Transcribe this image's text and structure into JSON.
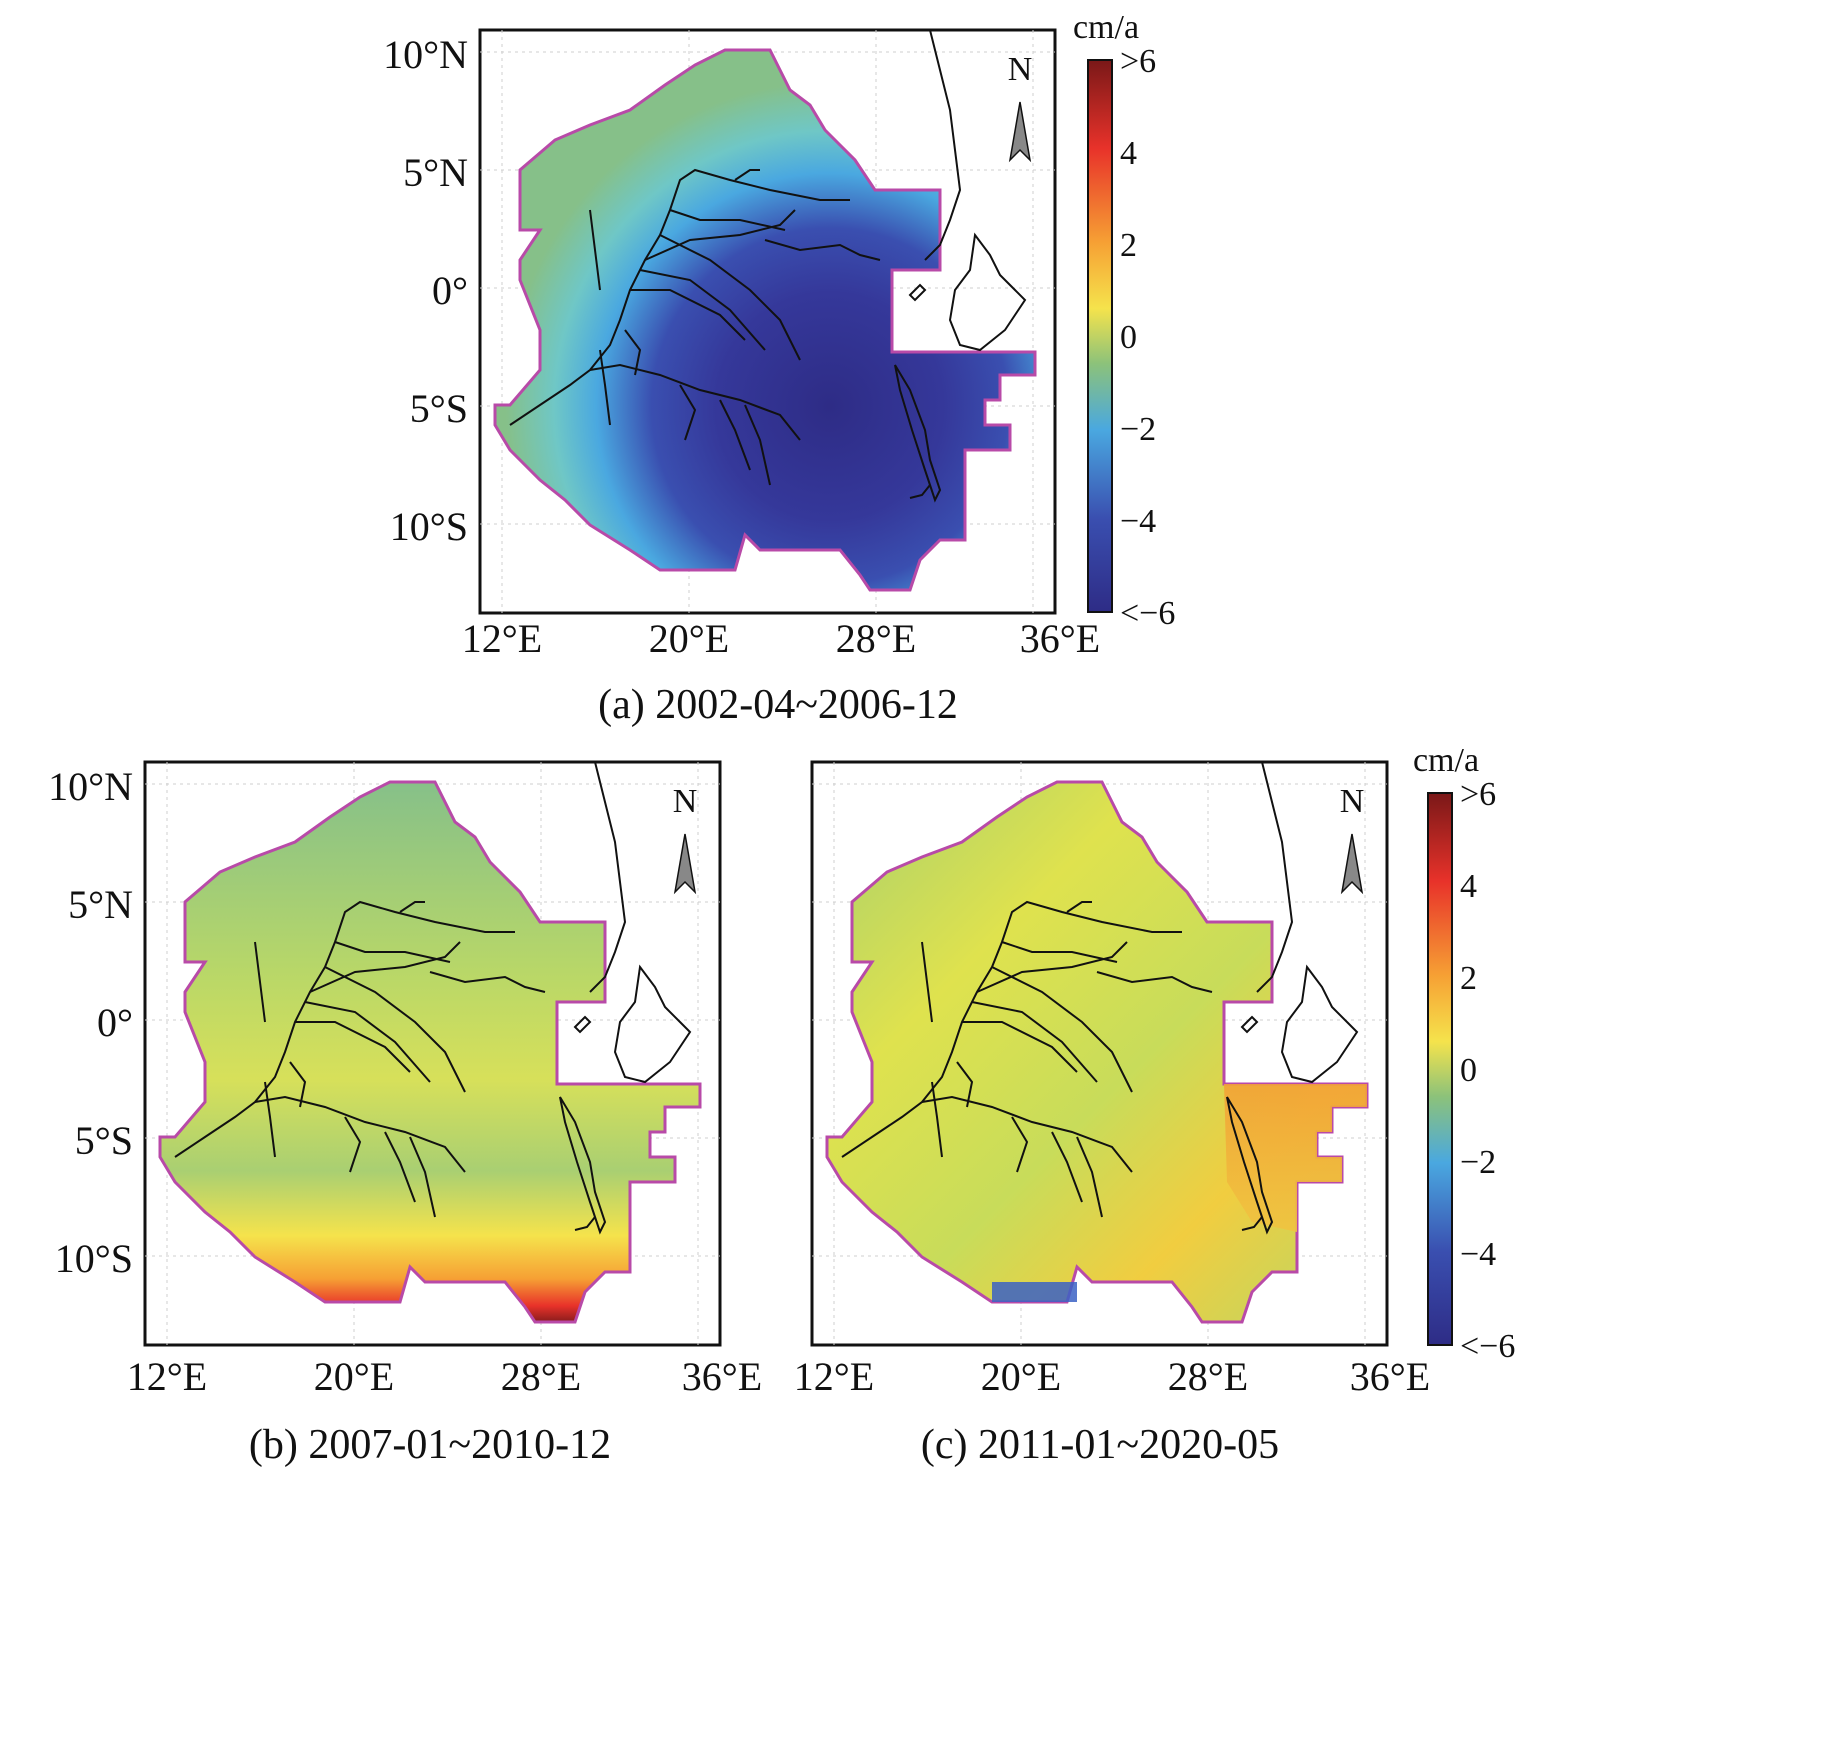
{
  "panels": [
    {
      "id": "a",
      "caption": "(a) 2002-04~2006-12",
      "lat_labels": [
        "10°N",
        "5°N",
        "0°",
        "5°S",
        "10°S"
      ],
      "lon_labels": [
        "12°E",
        "20°E",
        "28°E",
        "36°E"
      ],
      "north_label": "N",
      "pattern": "drying",
      "palette": [
        "#2e2c86",
        "#3a4fb0",
        "#4aa8e0",
        "#6fc7c6",
        "#86c089"
      ]
    },
    {
      "id": "b",
      "caption": "(b) 2007-01~2010-12",
      "lat_labels": [
        "10°N",
        "5°N",
        "0°",
        "5°S",
        "10°S"
      ],
      "lon_labels": [
        "12°E",
        "20°E",
        "28°E",
        "36°E"
      ],
      "north_label": "N",
      "pattern": "southern-wetting",
      "palette": [
        "#5fc0d8",
        "#8cc27a",
        "#c8dc5a",
        "#f5e34c",
        "#f6a034",
        "#e8322a",
        "#7a1818"
      ]
    },
    {
      "id": "c",
      "caption": "(c) 2011-01~2020-05",
      "lat_labels": [
        "10°N",
        "5°N",
        "0°",
        "5°S",
        "10°S"
      ],
      "lon_labels": [
        "12°E",
        "20°E",
        "28°E",
        "36°E"
      ],
      "north_label": "N",
      "pattern": "mild-wetting",
      "palette": [
        "#3b62c4",
        "#8cc27a",
        "#bcd85e",
        "#e8e54a",
        "#f6c43c",
        "#f3a134"
      ]
    }
  ],
  "colorbar": {
    "unit": "cm/a",
    "tick_labels": [
      ">6",
      "4",
      "2",
      "0",
      "−2",
      "−4",
      "<−6"
    ],
    "range": [
      -6,
      6
    ],
    "colors": [
      "#7a1818",
      "#e8322a",
      "#f6a034",
      "#f5e34c",
      "#8cc27a",
      "#4aa8e0",
      "#3a4fb0",
      "#2e2c86"
    ]
  },
  "colors": {
    "basin_outline": "#b84aa8",
    "rivers": "#111111",
    "frame": "#111111",
    "grid": "#c8c8c8"
  }
}
